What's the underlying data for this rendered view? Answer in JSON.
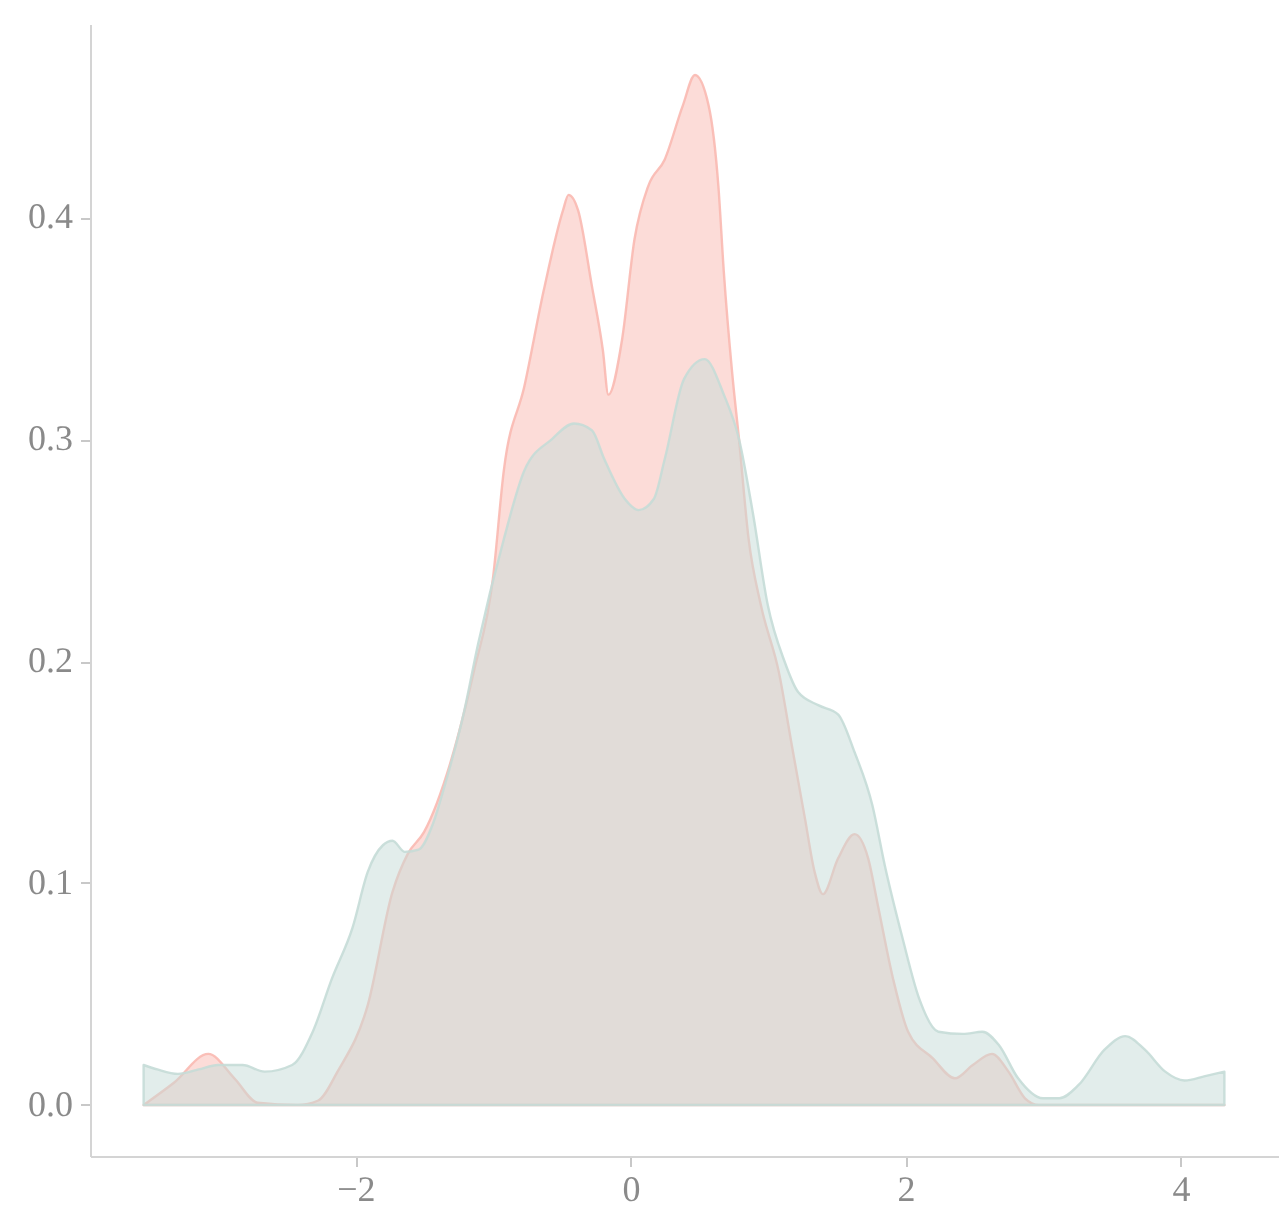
{
  "chart_data": {
    "type": "area",
    "xlim": [
      -3.93,
      4.71
    ],
    "ylim": [
      -0.023,
      0.487
    ],
    "xticks": [
      {
        "value": -2,
        "label": "−2"
      },
      0,
      2,
      4
    ],
    "yticks": [
      {
        "value": 0,
        "label": "0.0"
      },
      0.1,
      0.2,
      0.3,
      0.4
    ],
    "grid": false,
    "series": [
      {
        "color": "#f9b9b1",
        "x": [
          -3.54,
          -3.32,
          -3.07,
          -2.88,
          -2.71,
          -2.42,
          -2.27,
          -2.13,
          -1.91,
          -1.73,
          -1.62,
          -1.5,
          -1.3,
          -1.14,
          -1.0,
          -0.92,
          -0.77,
          -0.63,
          -0.49,
          -0.45,
          -0.38,
          -0.28,
          -0.2,
          -0.16,
          -0.06,
          0.03,
          0.13,
          0.25,
          0.38,
          0.47,
          0.57,
          0.64,
          0.68,
          0.74,
          0.79,
          0.86,
          0.95,
          1.08,
          1.18,
          1.27,
          1.34,
          1.4,
          1.51,
          1.63,
          1.73,
          1.8,
          1.91,
          2.02,
          2.2,
          2.36,
          2.49,
          2.63,
          2.75,
          2.87,
          2.97,
          3.5,
          4.0,
          4.32
        ],
        "values": [
          0,
          0.01,
          0.023,
          0.012,
          0.001,
          0,
          0.002,
          0.015,
          0.045,
          0.096,
          0.113,
          0.123,
          0.156,
          0.195,
          0.237,
          0.286,
          0.324,
          0.367,
          0.403,
          0.41,
          0.403,
          0.369,
          0.34,
          0.32,
          0.345,
          0.39,
          0.414,
          0.426,
          0.45,
          0.464,
          0.45,
          0.414,
          0.375,
          0.33,
          0.3,
          0.255,
          0.225,
          0.195,
          0.16,
          0.129,
          0.105,
          0.095,
          0.111,
          0.122,
          0.111,
          0.09,
          0.057,
          0.033,
          0.021,
          0.012,
          0.018,
          0.023,
          0.015,
          0.003,
          0,
          0,
          0,
          0
        ]
      },
      {
        "color": "#c5dbd7",
        "x": [
          -3.54,
          -3.44,
          -3.29,
          -3.14,
          -3.0,
          -2.82,
          -2.66,
          -2.46,
          -2.31,
          -2.17,
          -2.02,
          -1.91,
          -1.8,
          -1.73,
          -1.64,
          -1.54,
          -1.44,
          -1.35,
          -1.21,
          -1.11,
          -0.92,
          -0.77,
          -0.57,
          -0.41,
          -0.28,
          -0.19,
          -0.04,
          0.06,
          0.17,
          0.25,
          0.39,
          0.54,
          0.68,
          0.79,
          0.89,
          1.0,
          1.12,
          1.22,
          1.37,
          1.51,
          1.63,
          1.76,
          1.85,
          1.98,
          2.1,
          2.24,
          2.42,
          2.56,
          2.68,
          2.82,
          3.0,
          3.12,
          3.26,
          3.45,
          3.6,
          3.74,
          3.89,
          4.03,
          4.18,
          4.32
        ],
        "values": [
          0.018,
          0.016,
          0.014,
          0.016,
          0.018,
          0.018,
          0.015,
          0.018,
          0.033,
          0.057,
          0.08,
          0.105,
          0.117,
          0.119,
          0.114,
          0.115,
          0.126,
          0.144,
          0.177,
          0.207,
          0.255,
          0.286,
          0.3,
          0.307,
          0.304,
          0.291,
          0.273,
          0.268,
          0.273,
          0.291,
          0.327,
          0.336,
          0.32,
          0.3,
          0.267,
          0.225,
          0.2,
          0.186,
          0.18,
          0.176,
          0.159,
          0.135,
          0.108,
          0.075,
          0.048,
          0.033,
          0.032,
          0.033,
          0.027,
          0.012,
          0.003,
          0.003,
          0.009,
          0.025,
          0.031,
          0.025,
          0.015,
          0.011,
          0.013,
          0.015
        ]
      }
    ]
  }
}
